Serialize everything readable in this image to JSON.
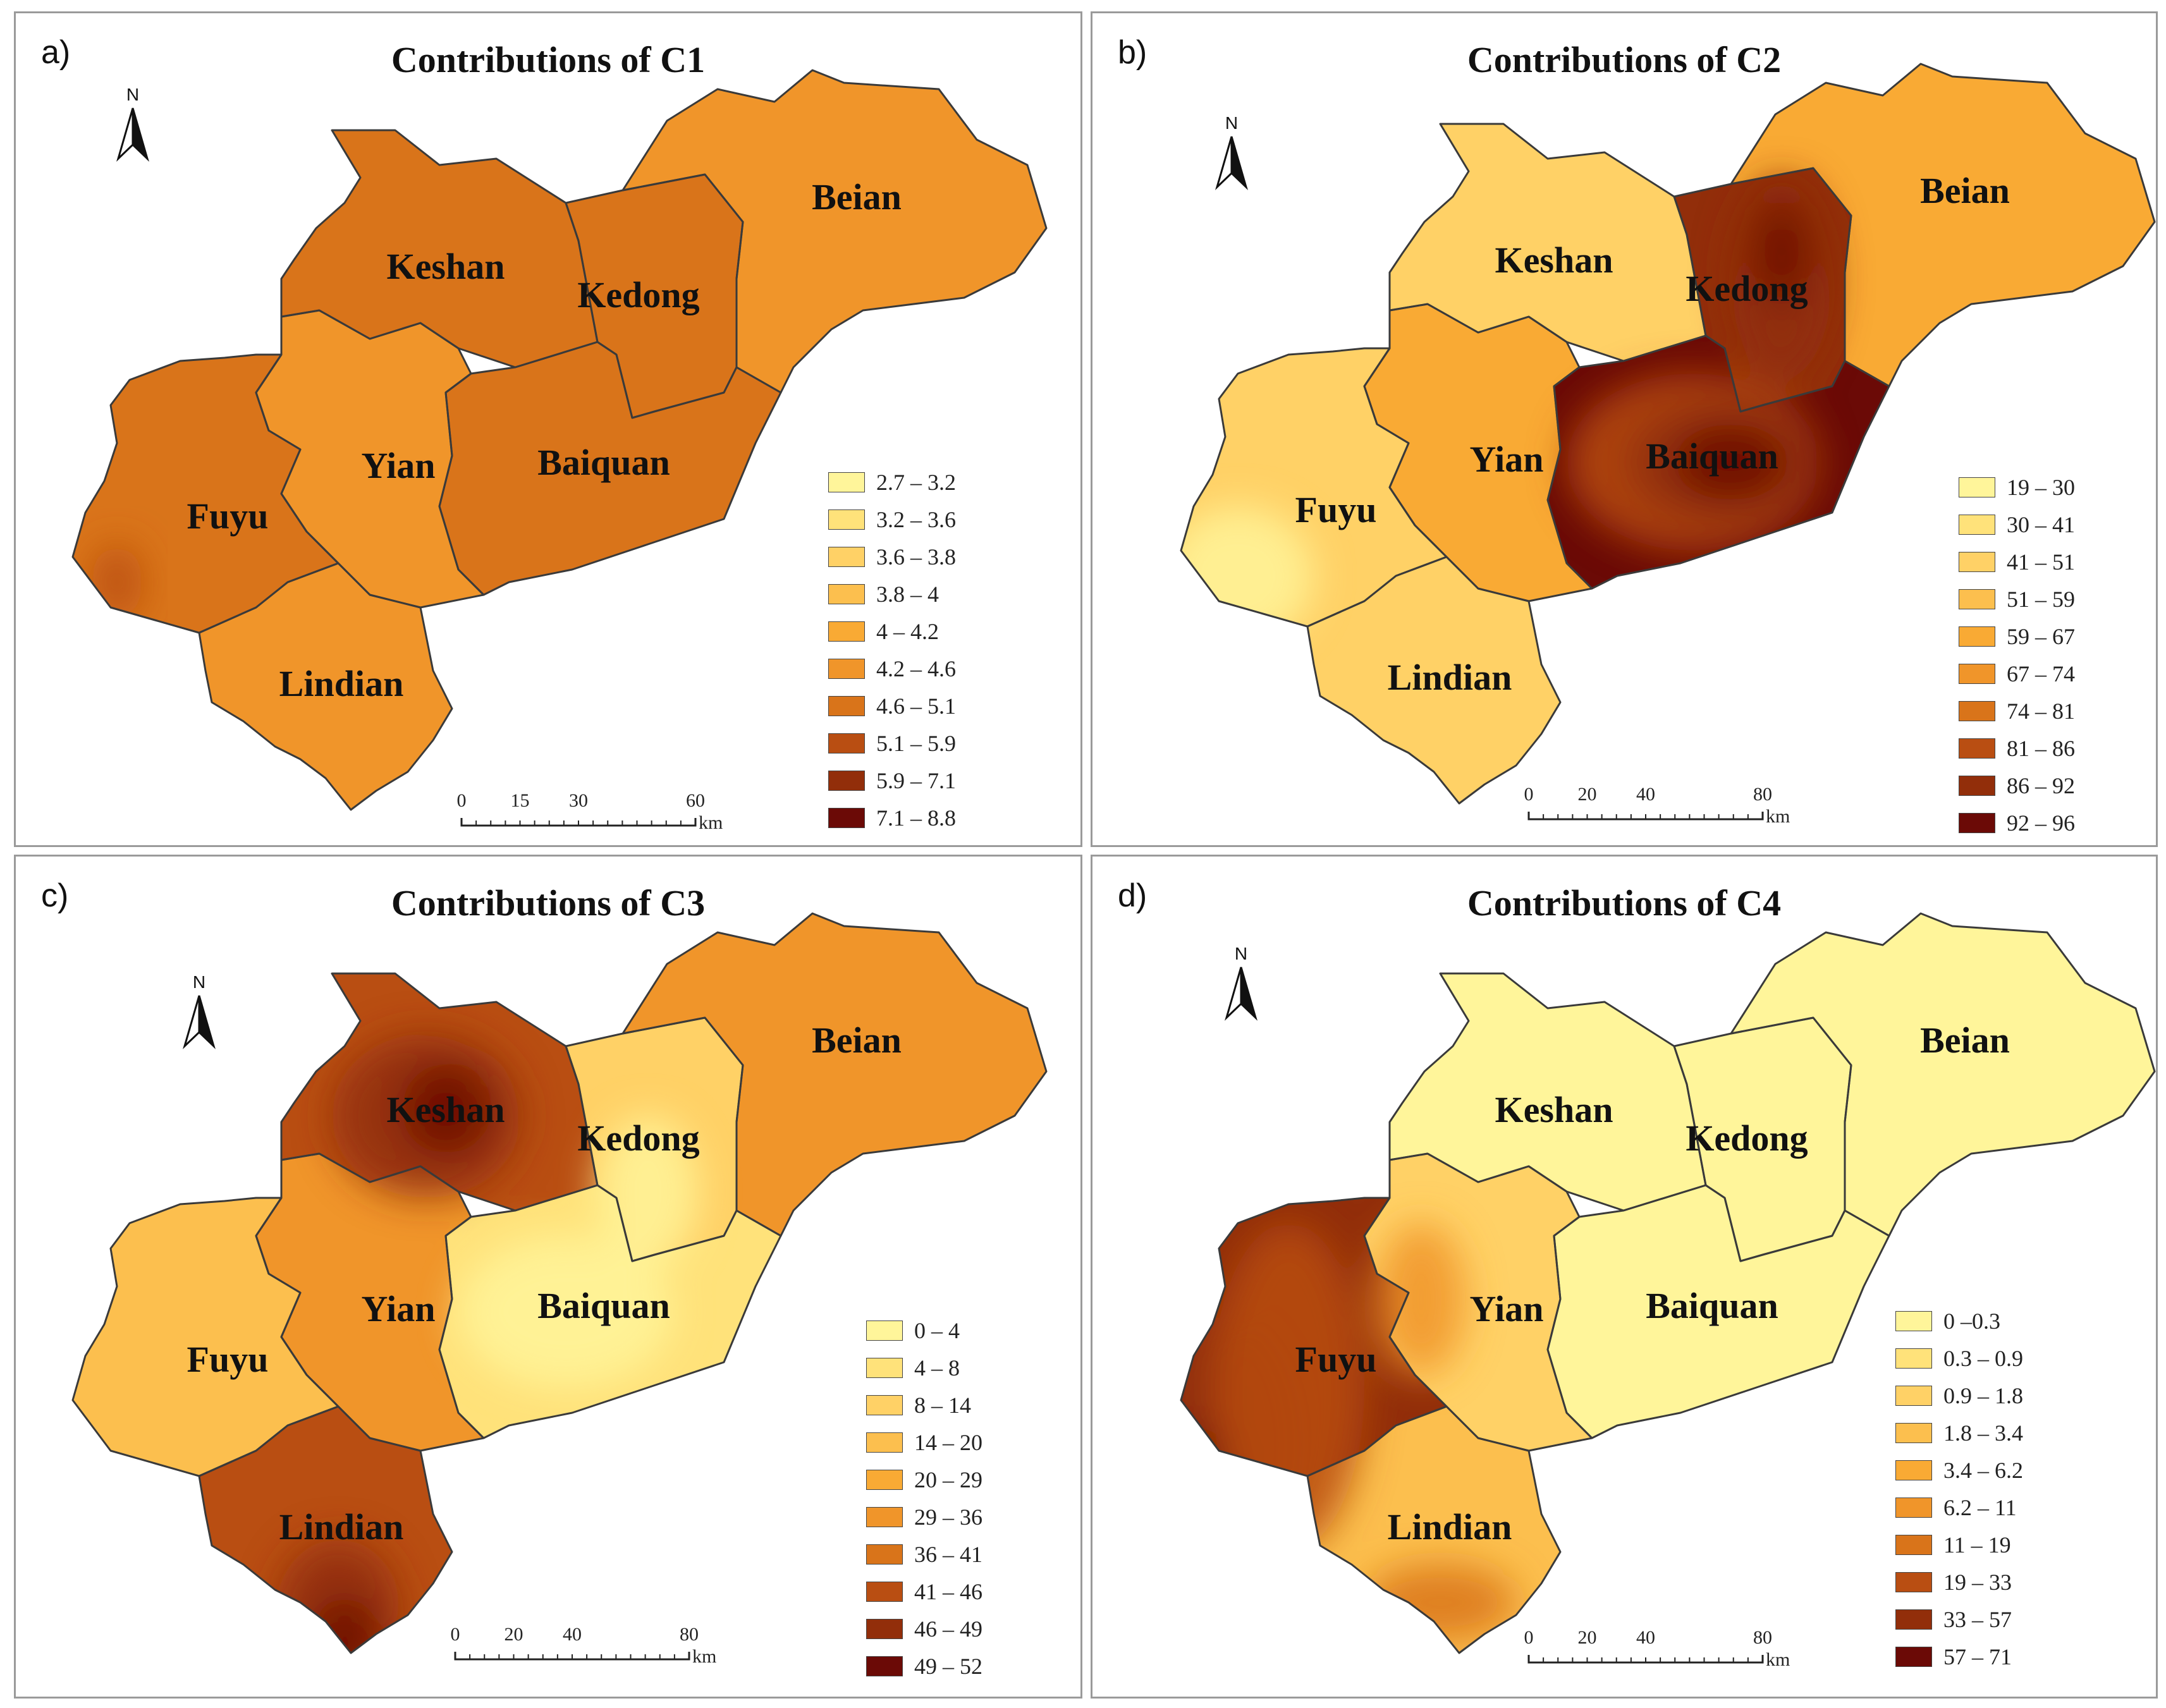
{
  "unit": "km",
  "panels": [
    {
      "letter": "a)",
      "title": "Contributions of C1",
      "scale_ticks": [
        "0",
        "15",
        "30",
        "60"
      ],
      "legend": [
        {
          "label": "2.7 – 3.2",
          "color": "#fff59a"
        },
        {
          "label": "3.2 – 3.6",
          "color": "#ffe27a"
        },
        {
          "label": "3.6 – 3.8",
          "color": "#ffd166"
        },
        {
          "label": "3.8 – 4",
          "color": "#fcbf4e"
        },
        {
          "label": "4 – 4.2",
          "color": "#f9aa34"
        },
        {
          "label": "4.2 – 4.6",
          "color": "#f0952a"
        },
        {
          "label": "4.6 – 5.1",
          "color": "#d9741a"
        },
        {
          "label": "5.1 – 5.9",
          "color": "#b94e12"
        },
        {
          "label": "5.9 – 7.1",
          "color": "#922e0a"
        },
        {
          "label": "7.1 – 8.8",
          "color": "#6b0a06"
        }
      ],
      "counties": [
        {
          "name": "Keshan",
          "value_class": 6
        },
        {
          "name": "Kedong",
          "value_class": 6
        },
        {
          "name": "Beian",
          "value_class": 5
        },
        {
          "name": "Fuyu",
          "value_class": 6
        },
        {
          "name": "Yian",
          "value_class": 5
        },
        {
          "name": "Baiquan",
          "value_class": 6
        },
        {
          "name": "Lindian",
          "value_class": 5
        }
      ]
    },
    {
      "letter": "b)",
      "title": "Contributions of C2",
      "scale_ticks": [
        "0",
        "20",
        "40",
        "80"
      ],
      "legend": [
        {
          "label": "19 – 30",
          "color": "#fff59a"
        },
        {
          "label": "30 – 41",
          "color": "#ffe27a"
        },
        {
          "label": "41 – 51",
          "color": "#ffd166"
        },
        {
          "label": "51 – 59",
          "color": "#fcbf4e"
        },
        {
          "label": "59 – 67",
          "color": "#f9aa34"
        },
        {
          "label": "67 – 74",
          "color": "#f0952a"
        },
        {
          "label": "74 – 81",
          "color": "#d9741a"
        },
        {
          "label": "81 – 86",
          "color": "#b94e12"
        },
        {
          "label": "86 – 92",
          "color": "#922e0a"
        },
        {
          "label": "92 – 96",
          "color": "#6b0a06"
        }
      ],
      "counties": [
        {
          "name": "Keshan",
          "value_class": 2
        },
        {
          "name": "Kedong",
          "value_class": 8
        },
        {
          "name": "Beian",
          "value_class": 4
        },
        {
          "name": "Fuyu",
          "value_class": 2
        },
        {
          "name": "Yian",
          "value_class": 4
        },
        {
          "name": "Baiquan",
          "value_class": 9
        },
        {
          "name": "Lindian",
          "value_class": 2
        }
      ]
    },
    {
      "letter": "c)",
      "title": "Contributions of C3",
      "scale_ticks": [
        "0",
        "20",
        "40",
        "80"
      ],
      "legend": [
        {
          "label": "0 – 4",
          "color": "#fff59a"
        },
        {
          "label": "4 – 8",
          "color": "#ffe27a"
        },
        {
          "label": "8 – 14",
          "color": "#ffd166"
        },
        {
          "label": "14 – 20",
          "color": "#fcbf4e"
        },
        {
          "label": "20 – 29",
          "color": "#f9aa34"
        },
        {
          "label": "29 – 36",
          "color": "#f0952a"
        },
        {
          "label": "36 – 41",
          "color": "#d9741a"
        },
        {
          "label": "41 – 46",
          "color": "#b94e12"
        },
        {
          "label": "46 – 49",
          "color": "#922e0a"
        },
        {
          "label": "49 – 52",
          "color": "#6b0a06"
        }
      ],
      "counties": [
        {
          "name": "Keshan",
          "value_class": 7
        },
        {
          "name": "Kedong",
          "value_class": 2
        },
        {
          "name": "Beian",
          "value_class": 5
        },
        {
          "name": "Fuyu",
          "value_class": 3
        },
        {
          "name": "Yian",
          "value_class": 5
        },
        {
          "name": "Baiquan",
          "value_class": 1
        },
        {
          "name": "Lindian",
          "value_class": 7
        }
      ]
    },
    {
      "letter": "d)",
      "title": "Contributions of C4",
      "scale_ticks": [
        "0",
        "20",
        "40",
        "80"
      ],
      "legend": [
        {
          "label": "0 –0.3",
          "color": "#fff59a"
        },
        {
          "label": "0.3 – 0.9",
          "color": "#ffe27a"
        },
        {
          "label": "0.9 – 1.8",
          "color": "#ffd166"
        },
        {
          "label": "1.8 – 3.4",
          "color": "#fcbf4e"
        },
        {
          "label": "3.4 – 6.2",
          "color": "#f9aa34"
        },
        {
          "label": "6.2 – 11",
          "color": "#f0952a"
        },
        {
          "label": "11 – 19",
          "color": "#d9741a"
        },
        {
          "label": "19 – 33",
          "color": "#b94e12"
        },
        {
          "label": "33 – 57",
          "color": "#922e0a"
        },
        {
          "label": "57 – 71",
          "color": "#6b0a06"
        }
      ],
      "counties": [
        {
          "name": "Keshan",
          "value_class": 0
        },
        {
          "name": "Kedong",
          "value_class": 0
        },
        {
          "name": "Beian",
          "value_class": 0
        },
        {
          "name": "Fuyu",
          "value_class": 8
        },
        {
          "name": "Yian",
          "value_class": 2
        },
        {
          "name": "Baiquan",
          "value_class": 0
        },
        {
          "name": "Lindian",
          "value_class": 3
        }
      ]
    }
  ]
}
